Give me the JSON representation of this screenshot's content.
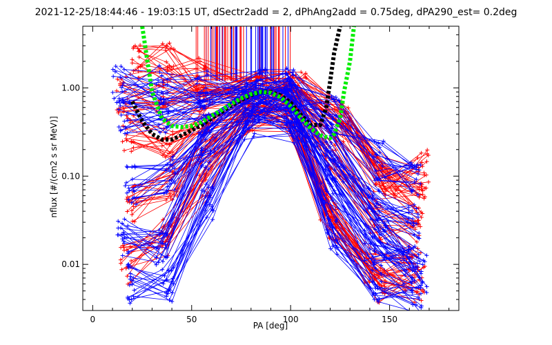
{
  "chart_data": {
    "type": "line",
    "title": "2021-12-25/18:44:46 - 19:03:15 UT, dSectr2add = 2, dPhAng2add = 0.75deg, dPA290_est=    0.2deg",
    "xlabel": "PA [deg]",
    "ylabel": "nflux [#/(cm2 s sr MeV)]",
    "xlim": [
      -5,
      185
    ],
    "ylim": [
      0.003,
      5.0
    ],
    "yscale": "log",
    "xticks": [
      0,
      50,
      100,
      150
    ],
    "xtick_labels": [
      "0",
      "50",
      "100",
      "150"
    ],
    "yticks": [
      0.01,
      0.1,
      1.0
    ],
    "ytick_labels": [
      "0.01",
      "0.10",
      "1.00"
    ],
    "grid": false,
    "colors": {
      "red": "#ff0000",
      "blue": "#0000ff",
      "black": "#000000",
      "green": "#00ee00"
    },
    "series": [
      {
        "color": "#ff0000",
        "style": "lines+plus",
        "description_points": [
          [
            [
              15,
              0.8
            ],
            [
              35,
              0.7
            ],
            [
              55,
              0.9
            ],
            [
              85,
              0.9
            ],
            [
              100,
              0.9
            ],
            [
              125,
              0.4
            ],
            [
              145,
              0.08
            ],
            [
              165,
              0.05
            ]
          ],
          [
            [
              18,
              0.3
            ],
            [
              38,
              0.25
            ],
            [
              58,
              0.5
            ],
            [
              82,
              0.8
            ],
            [
              100,
              0.8
            ],
            [
              120,
              0.2
            ],
            [
              143,
              0.03
            ],
            [
              163,
              0.02
            ]
          ],
          [
            [
              20,
              0.05
            ],
            [
              40,
              0.08
            ],
            [
              60,
              0.3
            ],
            [
              80,
              0.7
            ],
            [
              98,
              0.6
            ],
            [
              118,
              0.05
            ],
            [
              140,
              0.01
            ],
            [
              160,
              0.008
            ]
          ],
          [
            [
              17,
              0.01
            ],
            [
              37,
              0.02
            ],
            [
              57,
              0.1
            ],
            [
              78,
              0.5
            ],
            [
              102,
              0.5
            ],
            [
              122,
              0.03
            ],
            [
              145,
              0.006
            ],
            [
              165,
              0.006
            ]
          ],
          [
            [
              22,
              2.0
            ],
            [
              38,
              2.0
            ],
            [
              55,
              1.3
            ],
            [
              85,
              1.0
            ],
            [
              105,
              1.0
            ],
            [
              128,
              0.5
            ],
            [
              150,
              0.1
            ],
            [
              167,
              0.12
            ]
          ]
        ]
      },
      {
        "color": "#0000ff",
        "style": "lines+plus",
        "description_points": [
          [
            [
              13,
              1.1
            ],
            [
              35,
              1.1
            ],
            [
              55,
              1.0
            ],
            [
              85,
              1.0
            ],
            [
              100,
              1.0
            ],
            [
              122,
              0.5
            ],
            [
              145,
              0.15
            ],
            [
              163,
              0.1
            ]
          ],
          [
            [
              16,
              0.5
            ],
            [
              36,
              0.4
            ],
            [
              57,
              0.6
            ],
            [
              83,
              0.85
            ],
            [
              98,
              0.85
            ],
            [
              120,
              0.25
            ],
            [
              142,
              0.05
            ],
            [
              162,
              0.03
            ]
          ],
          [
            [
              19,
              0.08
            ],
            [
              39,
              0.1
            ],
            [
              59,
              0.3
            ],
            [
              80,
              0.7
            ],
            [
              100,
              0.7
            ],
            [
              118,
              0.08
            ],
            [
              140,
              0.015
            ],
            [
              160,
              0.01
            ]
          ],
          [
            [
              18,
              0.006
            ],
            [
              38,
              0.006
            ],
            [
              58,
              0.05
            ],
            [
              79,
              0.4
            ],
            [
              101,
              0.4
            ],
            [
              121,
              0.02
            ],
            [
              143,
              0.006
            ],
            [
              164,
              0.004
            ]
          ],
          [
            [
              15,
              0.02
            ],
            [
              35,
              0.015
            ],
            [
              56,
              0.2
            ],
            [
              84,
              0.6
            ],
            [
              99,
              0.6
            ],
            [
              124,
              0.1
            ],
            [
              147,
              0.02
            ],
            [
              166,
              0.008
            ]
          ]
        ]
      },
      {
        "name": "",
        "color": "#000000",
        "style": "thick-dashed",
        "x": [
          20,
          25,
          30,
          35,
          40,
          45,
          50,
          55,
          60,
          65,
          70,
          75,
          80,
          85,
          90,
          95,
          100,
          105,
          110,
          115,
          118,
          120,
          122,
          125
        ],
        "y": [
          0.7,
          0.42,
          0.3,
          0.26,
          0.26,
          0.29,
          0.33,
          0.38,
          0.45,
          0.53,
          0.63,
          0.73,
          0.83,
          0.9,
          0.9,
          0.82,
          0.68,
          0.5,
          0.38,
          0.38,
          0.6,
          1.2,
          2.5,
          5.0
        ]
      },
      {
        "name": "",
        "color": "#00ee00",
        "style": "thick-dashed",
        "x": [
          25,
          27,
          30,
          35,
          40,
          45,
          50,
          55,
          60,
          65,
          70,
          75,
          80,
          85,
          90,
          95,
          100,
          105,
          110,
          115,
          120,
          122,
          125,
          127,
          130,
          132
        ],
        "y": [
          5.0,
          2.5,
          0.9,
          0.45,
          0.37,
          0.36,
          0.37,
          0.41,
          0.48,
          0.56,
          0.66,
          0.76,
          0.85,
          0.9,
          0.88,
          0.78,
          0.62,
          0.46,
          0.35,
          0.29,
          0.27,
          0.3,
          0.45,
          0.9,
          2.0,
          5.0
        ]
      }
    ],
    "vertical_lines": {
      "x_range": [
        52,
        100
      ],
      "y_bottom": 1.2,
      "colors": [
        "#0000ff",
        "#ff0000"
      ]
    }
  }
}
